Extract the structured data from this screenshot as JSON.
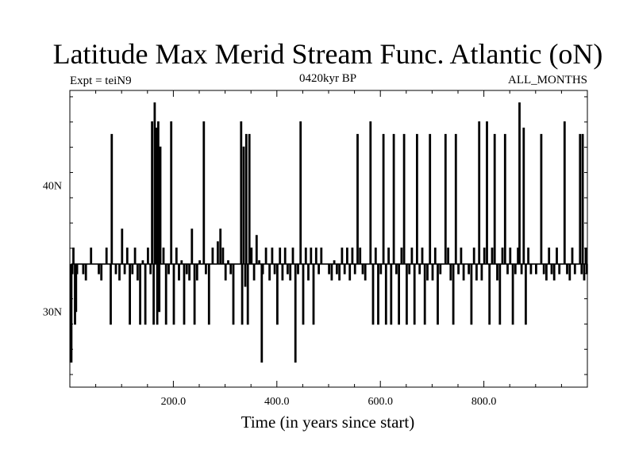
{
  "chart_data": {
    "type": "line",
    "title": "Latitude Max Merid Stream Func. Atlantic (oN)",
    "subtitle_left": "Expt = teiN9",
    "subtitle_center": "0420kyr BP",
    "subtitle_right": "ALL_MONTHS",
    "xlabel": "Time (in years since start)",
    "ylabel": "",
    "xlim": [
      0,
      1000
    ],
    "ylim": [
      24,
      47.5
    ],
    "x_ticks": [
      200,
      400,
      600,
      800
    ],
    "x_tick_labels": [
      "200.0",
      "400.0",
      "600.0",
      "800.0"
    ],
    "y_ticks": [
      30,
      40
    ],
    "y_tick_labels": [
      "30N",
      "40N"
    ],
    "grid": false,
    "baseline": 33.75,
    "series": [
      {
        "values": [
          [
            2,
            26
          ],
          [
            4,
            33
          ],
          [
            6,
            35
          ],
          [
            9,
            29
          ],
          [
            11,
            30
          ],
          [
            13,
            33
          ],
          [
            25,
            33
          ],
          [
            30,
            32.5
          ],
          [
            40,
            35
          ],
          [
            55,
            33
          ],
          [
            60,
            32.5
          ],
          [
            70,
            35
          ],
          [
            78,
            29
          ],
          [
            80,
            44
          ],
          [
            88,
            33
          ],
          [
            95,
            32.5
          ],
          [
            100,
            36.5
          ],
          [
            105,
            33
          ],
          [
            110,
            35
          ],
          [
            115,
            29
          ],
          [
            120,
            33
          ],
          [
            125,
            35
          ],
          [
            130,
            32.5
          ],
          [
            135,
            29
          ],
          [
            140,
            34
          ],
          [
            145,
            29
          ],
          [
            150,
            35
          ],
          [
            155,
            33
          ],
          [
            158,
            45
          ],
          [
            161,
            29
          ],
          [
            163,
            46.5
          ],
          [
            166,
            44.5
          ],
          [
            168,
            29
          ],
          [
            170,
            45
          ],
          [
            172,
            30
          ],
          [
            174,
            43
          ],
          [
            180,
            35
          ],
          [
            185,
            29
          ],
          [
            190,
            33
          ],
          [
            195,
            45
          ],
          [
            200,
            29
          ],
          [
            205,
            35
          ],
          [
            210,
            32.5
          ],
          [
            215,
            34
          ],
          [
            220,
            29
          ],
          [
            225,
            33
          ],
          [
            230,
            32.5
          ],
          [
            235,
            36.5
          ],
          [
            240,
            29
          ],
          [
            245,
            32.5
          ],
          [
            250,
            34
          ],
          [
            258,
            45
          ],
          [
            262,
            33
          ],
          [
            268,
            29
          ],
          [
            275,
            35
          ],
          [
            285,
            35.5
          ],
          [
            290,
            36.5
          ],
          [
            295,
            35
          ],
          [
            300,
            32.5
          ],
          [
            305,
            34
          ],
          [
            310,
            33
          ],
          [
            315,
            29
          ],
          [
            330,
            45
          ],
          [
            332,
            29
          ],
          [
            335,
            43
          ],
          [
            338,
            32
          ],
          [
            340,
            44
          ],
          [
            343,
            29
          ],
          [
            346,
            44
          ],
          [
            350,
            35
          ],
          [
            355,
            32.5
          ],
          [
            360,
            36
          ],
          [
            365,
            34
          ],
          [
            370,
            26
          ],
          [
            372,
            33
          ],
          [
            378,
            35
          ],
          [
            385,
            32.5
          ],
          [
            390,
            35
          ],
          [
            395,
            33
          ],
          [
            400,
            29
          ],
          [
            405,
            35
          ],
          [
            410,
            32.5
          ],
          [
            415,
            35
          ],
          [
            420,
            33
          ],
          [
            425,
            32.5
          ],
          [
            430,
            35
          ],
          [
            435,
            26
          ],
          [
            440,
            33
          ],
          [
            445,
            45
          ],
          [
            450,
            29
          ],
          [
            455,
            35
          ],
          [
            460,
            32.5
          ],
          [
            465,
            35
          ],
          [
            470,
            29
          ],
          [
            475,
            35
          ],
          [
            480,
            33
          ],
          [
            485,
            35
          ],
          [
            500,
            33
          ],
          [
            505,
            32.5
          ],
          [
            510,
            34
          ],
          [
            515,
            33
          ],
          [
            520,
            32.5
          ],
          [
            525,
            35
          ],
          [
            530,
            33
          ],
          [
            535,
            35
          ],
          [
            540,
            32.5
          ],
          [
            545,
            35
          ],
          [
            550,
            33
          ],
          [
            555,
            44
          ],
          [
            560,
            35
          ],
          [
            565,
            33
          ],
          [
            570,
            32.5
          ],
          [
            580,
            45
          ],
          [
            585,
            29
          ],
          [
            590,
            35
          ],
          [
            595,
            29
          ],
          [
            600,
            33
          ],
          [
            605,
            44
          ],
          [
            610,
            29
          ],
          [
            615,
            35
          ],
          [
            620,
            29
          ],
          [
            625,
            44
          ],
          [
            630,
            33
          ],
          [
            635,
            29
          ],
          [
            640,
            35
          ],
          [
            645,
            44
          ],
          [
            650,
            29
          ],
          [
            655,
            33
          ],
          [
            660,
            35
          ],
          [
            665,
            29
          ],
          [
            670,
            44
          ],
          [
            675,
            33
          ],
          [
            680,
            35
          ],
          [
            685,
            29
          ],
          [
            690,
            32.5
          ],
          [
            695,
            44
          ],
          [
            700,
            32.5
          ],
          [
            705,
            35
          ],
          [
            710,
            29
          ],
          [
            715,
            33
          ],
          [
            725,
            44
          ],
          [
            730,
            35
          ],
          [
            735,
            32.5
          ],
          [
            740,
            29
          ],
          [
            745,
            44
          ],
          [
            750,
            33
          ],
          [
            755,
            35
          ],
          [
            760,
            32.5
          ],
          [
            770,
            33
          ],
          [
            775,
            29
          ],
          [
            780,
            35
          ],
          [
            785,
            32.5
          ],
          [
            790,
            45
          ],
          [
            795,
            32.5
          ],
          [
            800,
            35
          ],
          [
            805,
            45
          ],
          [
            810,
            29
          ],
          [
            815,
            35
          ],
          [
            820,
            44
          ],
          [
            825,
            32.5
          ],
          [
            830,
            29
          ],
          [
            835,
            35
          ],
          [
            840,
            44
          ],
          [
            845,
            33
          ],
          [
            850,
            35
          ],
          [
            855,
            29
          ],
          [
            860,
            33
          ],
          [
            865,
            35
          ],
          [
            868,
            46.5
          ],
          [
            872,
            33
          ],
          [
            876,
            44.5
          ],
          [
            880,
            29
          ],
          [
            885,
            35
          ],
          [
            890,
            33
          ],
          [
            900,
            33
          ],
          [
            910,
            44
          ],
          [
            915,
            33
          ],
          [
            920,
            32.5
          ],
          [
            925,
            35
          ],
          [
            930,
            33
          ],
          [
            935,
            32.5
          ],
          [
            940,
            35
          ],
          [
            945,
            33
          ],
          [
            955,
            45
          ],
          [
            960,
            33
          ],
          [
            965,
            32.5
          ],
          [
            970,
            35
          ],
          [
            975,
            33
          ],
          [
            985,
            44
          ],
          [
            988,
            33
          ],
          [
            990,
            44
          ],
          [
            993,
            32.5
          ],
          [
            996,
            35
          ],
          [
            998,
            33
          ]
        ]
      }
    ]
  }
}
